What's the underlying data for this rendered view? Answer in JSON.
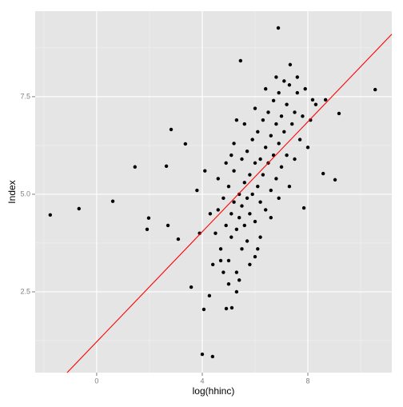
{
  "chart_data": {
    "type": "scatter",
    "x_label": "log(hhinc)",
    "y_label": "Index",
    "x": [
      -1.76,
      -0.67,
      0.61,
      1.45,
      1.97,
      1.91,
      2.82,
      2.64,
      3.36,
      2.7,
      3.09,
      3.58,
      4.06,
      4.0,
      4.39,
      4.91,
      5.12,
      5.45,
      6.88,
      7.33,
      10.55,
      9.18,
      9.03,
      8.58,
      7.85,
      8.67,
      8.18,
      4.27,
      5.3,
      4.5,
      4.6,
      4.7,
      4.8,
      4.9,
      5.0,
      5.0,
      5.1,
      5.1,
      5.2,
      5.2,
      5.3,
      5.3,
      5.4,
      5.4,
      5.5,
      5.5,
      5.5,
      5.6,
      5.6,
      5.7,
      5.7,
      5.7,
      5.8,
      5.8,
      5.9,
      5.9,
      6.0,
      6.0,
      6.0,
      6.1,
      6.1,
      6.2,
      6.2,
      6.3,
      6.3,
      6.4,
      6.4,
      6.5,
      6.5,
      6.6,
      6.6,
      6.7,
      6.7,
      6.8,
      6.8,
      6.9,
      6.9,
      7.0,
      7.0,
      7.1,
      7.2,
      7.2,
      7.3,
      7.4,
      7.5,
      7.5,
      7.6,
      7.7,
      7.8,
      7.9,
      8.0,
      8.1,
      8.3,
      4.3,
      4.4,
      4.6,
      4.8,
      4.9,
      5.0,
      5.2,
      5.4,
      5.6,
      5.8,
      6.0,
      6.2,
      6.4,
      6.6,
      3.9,
      3.8,
      4.1,
      6.9,
      7.3,
      7.6,
      5.3,
      5.1,
      4.7,
      6.1,
      6.8,
      7.1
    ],
    "values": [
      4.47,
      4.63,
      4.82,
      5.7,
      4.39,
      4.1,
      6.66,
      5.72,
      6.29,
      4.2,
      3.85,
      2.62,
      2.05,
      0.9,
      0.84,
      2.07,
      2.09,
      8.42,
      9.26,
      8.32,
      7.68,
      7.07,
      5.37,
      5.53,
      4.65,
      7.42,
      7.42,
      2.4,
      2.5,
      4.0,
      4.6,
      3.6,
      4.9,
      4.2,
      3.3,
      5.2,
      4.5,
      3.9,
      4.8,
      5.6,
      4.1,
      3.0,
      5.0,
      4.4,
      5.9,
      3.6,
      4.7,
      5.3,
      4.2,
      6.1,
      4.9,
      3.8,
      5.5,
      4.5,
      6.4,
      5.0,
      5.8,
      4.3,
      3.4,
      6.6,
      5.2,
      5.9,
      4.8,
      6.9,
      5.5,
      6.2,
      4.6,
      7.1,
      5.8,
      6.5,
      5.1,
      7.4,
      6.0,
      6.8,
      5.4,
      7.6,
      6.3,
      7.0,
      5.7,
      6.6,
      7.3,
      6.0,
      7.8,
      6.8,
      7.1,
      5.9,
      7.6,
      6.4,
      7.0,
      7.7,
      6.2,
      6.9,
      7.3,
      4.5,
      3.2,
      5.4,
      3.0,
      5.8,
      2.7,
      6.3,
      2.8,
      6.8,
      3.2,
      7.2,
      3.9,
      7.7,
      4.4,
      4.0,
      5.1,
      5.6,
      4.9,
      5.2,
      8.0,
      6.9,
      6.0,
      3.3,
      3.6,
      8.0,
      7.9
    ],
    "color": "#000000",
    "fit_line": {
      "x": [
        -1.12,
        11.18
      ],
      "values": [
        0.43,
        9.1
      ],
      "color": "#ff0000"
    },
    "xlim": [
      -2.33,
      11.18
    ],
    "ylim": [
      0.43,
      9.69
    ],
    "xticks": [
      0,
      4,
      8
    ],
    "yticks": [
      2.5,
      {
        "value": 5,
        "label": "5.0"
      },
      7.5
    ],
    "minor_xticks": [
      -2,
      2,
      6,
      10
    ],
    "minor_yticks": [
      1.25,
      3.75,
      6.25,
      8.75
    ],
    "grid": true
  }
}
